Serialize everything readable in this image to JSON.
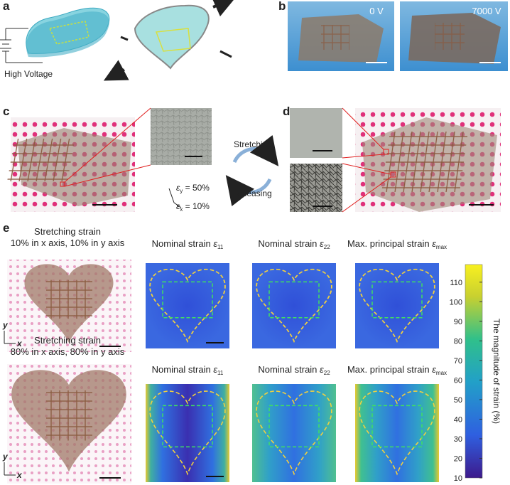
{
  "panels": {
    "a": "a",
    "b": "b",
    "c": "c",
    "d": "d",
    "e": "e"
  },
  "a": {
    "label": "High Voltage"
  },
  "b": {
    "photo_labels": [
      "0 V",
      "7000 V"
    ]
  },
  "c": {
    "strain_y": {
      "symbol": "ε",
      "sub": "y",
      "text": " = 50%"
    },
    "strain_x": {
      "symbol": "ε",
      "sub": "x",
      "text": " = 10%"
    },
    "cycle_top": "Stretching",
    "cycle_bottom": "Releasing"
  },
  "e": {
    "rows": [
      {
        "title": [
          "Stretching strain",
          "10% in x axis, 10% in y axis"
        ],
        "maps": [
          {
            "text": "Nominal strain ",
            "symbol": "ε",
            "sub": "11"
          },
          {
            "text": "Nominal strain ",
            "symbol": "ε",
            "sub": "22"
          },
          {
            "text": "Max. principal strain ",
            "symbol": "ε",
            "sub": "max"
          }
        ]
      },
      {
        "title": [
          "Stretching strain",
          "80% in x axis, 80% in y axis"
        ],
        "maps": [
          {
            "text": "Nominal strain ",
            "symbol": "ε",
            "sub": "11"
          },
          {
            "text": "Nominal strain ",
            "symbol": "ε",
            "sub": "22"
          },
          {
            "text": "Max. principal strain ",
            "symbol": "ε",
            "sub": "max"
          }
        ]
      }
    ],
    "axes": {
      "y": "y",
      "x": "x"
    },
    "colorbar": {
      "label": "The magnitude of strain (%)",
      "range": [
        10,
        119
      ],
      "ticks": [
        10,
        20,
        30,
        40,
        50,
        60,
        70,
        80,
        90,
        100,
        110
      ]
    }
  }
}
